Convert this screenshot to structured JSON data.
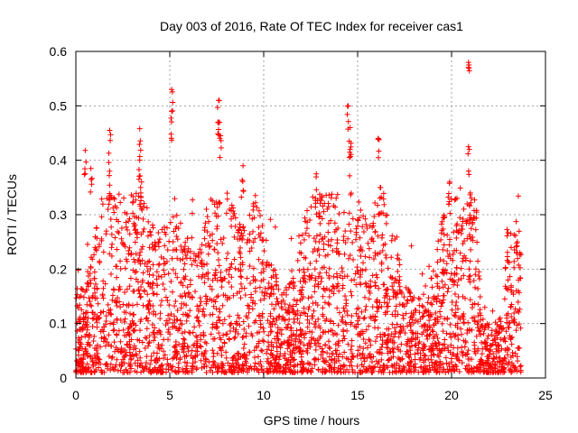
{
  "chart_data": {
    "type": "scatter",
    "title": "Day 003 of 2016, Rate Of TEC Index for receiver cas1",
    "xlabel": "GPS time / hours",
    "ylabel": "ROTI / TECUs",
    "xlim": [
      0,
      25
    ],
    "ylim": [
      0,
      0.6
    ],
    "xticks": [
      0,
      5,
      10,
      15,
      20,
      25
    ],
    "yticks": [
      0,
      0.1,
      0.2,
      0.3,
      0.4,
      0.5,
      0.6
    ],
    "xtick_labels": [
      "0",
      "5",
      "10",
      "15",
      "20",
      "25"
    ],
    "ytick_labels": [
      "0",
      "0.1",
      "0.2",
      "0.3",
      "0.4",
      "0.5",
      "0.6"
    ],
    "grid": true,
    "marker": "plus",
    "series_color": "#ff0000",
    "series": [
      {
        "name": "ROTI",
        "x_range": [
          0,
          23.7
        ],
        "typical_y_range": [
          0.0,
          0.15
        ],
        "notable_points": [
          {
            "x": 0.5,
            "y": 0.418
          },
          {
            "x": 0.8,
            "y": 0.385
          },
          {
            "x": 1.8,
            "y": 0.455
          },
          {
            "x": 1.8,
            "y": 0.38
          },
          {
            "x": 3.4,
            "y": 0.458
          },
          {
            "x": 3.4,
            "y": 0.4
          },
          {
            "x": 3.5,
            "y": 0.36
          },
          {
            "x": 5.1,
            "y": 0.53
          },
          {
            "x": 5.1,
            "y": 0.49
          },
          {
            "x": 7.6,
            "y": 0.51
          },
          {
            "x": 7.6,
            "y": 0.47
          },
          {
            "x": 7.7,
            "y": 0.445
          },
          {
            "x": 8.9,
            "y": 0.39
          },
          {
            "x": 12.8,
            "y": 0.375
          },
          {
            "x": 14.5,
            "y": 0.5
          },
          {
            "x": 14.6,
            "y": 0.46
          },
          {
            "x": 14.6,
            "y": 0.42
          },
          {
            "x": 16.1,
            "y": 0.44
          },
          {
            "x": 16.2,
            "y": 0.35
          },
          {
            "x": 20.9,
            "y": 0.58
          },
          {
            "x": 20.9,
            "y": 0.425
          },
          {
            "x": 21.0,
            "y": 0.34
          },
          {
            "x": 19.9,
            "y": 0.36
          },
          {
            "x": 23.5,
            "y": 0.25
          }
        ]
      }
    ]
  }
}
